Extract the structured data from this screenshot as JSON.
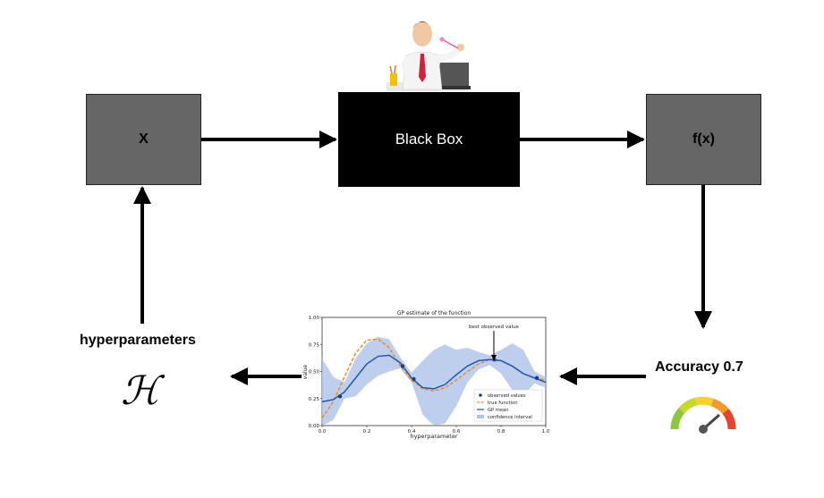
{
  "diagram": {
    "input_label": "X",
    "blackbox_label": "Black Box",
    "output_label": "f(x)",
    "accuracy_label": "Accuracy 0.7",
    "hyperparameters_label": "hyperparameters",
    "hyperparameter_symbol": "ℋ"
  },
  "icons": {
    "presenter": "magician-person-icon",
    "gauge": "speedometer-gauge-icon"
  },
  "colors": {
    "gray_box": "#666666",
    "black_box": "#000000",
    "gp_mean": "#1f57b5",
    "true_function": "#f08a24",
    "confidence": "#aec3e8"
  },
  "chart_data": {
    "type": "line",
    "title": "GP estimate of the function",
    "xlabel": "hyperparameter",
    "ylabel": "value",
    "xlim": [
      0.0,
      1.0
    ],
    "ylim": [
      0.0,
      1.0
    ],
    "xticks": [
      "0.0",
      "0.2",
      "0.4",
      "0.6",
      "0.8",
      "1.0"
    ],
    "yticks": [
      "0.00",
      "0.25",
      "0.50",
      "0.75",
      "1.00"
    ],
    "annotation": "best observed value",
    "legend_position": "lower-right",
    "legend": [
      "observed values",
      "true function",
      "GP mean",
      "confidence interval"
    ],
    "x": [
      0.0,
      0.05,
      0.1,
      0.15,
      0.2,
      0.25,
      0.3,
      0.35,
      0.4,
      0.45,
      0.5,
      0.55,
      0.6,
      0.65,
      0.7,
      0.75,
      0.8,
      0.85,
      0.9,
      0.95,
      1.0
    ],
    "true_function": [
      0.07,
      0.22,
      0.45,
      0.67,
      0.79,
      0.8,
      0.72,
      0.55,
      0.42,
      0.34,
      0.32,
      0.35,
      0.42,
      0.5,
      0.57,
      0.61,
      0.6,
      0.55,
      0.48,
      0.44,
      0.42
    ],
    "gp_mean": [
      0.22,
      0.24,
      0.31,
      0.44,
      0.57,
      0.64,
      0.65,
      0.58,
      0.44,
      0.35,
      0.34,
      0.38,
      0.47,
      0.55,
      0.6,
      0.61,
      0.6,
      0.55,
      0.48,
      0.44,
      0.4
    ],
    "ci_upper": [
      0.62,
      0.45,
      0.4,
      0.62,
      0.76,
      0.82,
      0.8,
      0.63,
      0.49,
      0.6,
      0.7,
      0.75,
      0.7,
      0.72,
      0.68,
      0.65,
      0.7,
      0.76,
      0.7,
      0.5,
      0.45
    ],
    "ci_lower": [
      -0.15,
      0.05,
      0.25,
      0.27,
      0.38,
      0.46,
      0.5,
      0.53,
      0.4,
      0.1,
      -0.05,
      0.02,
      0.18,
      0.4,
      0.52,
      0.56,
      0.48,
      0.33,
      0.28,
      0.39,
      0.35
    ],
    "observed": [
      {
        "x": 0.08,
        "y": 0.27
      },
      {
        "x": 0.36,
        "y": 0.55
      },
      {
        "x": 0.41,
        "y": 0.43
      },
      {
        "x": 0.77,
        "y": 0.61
      },
      {
        "x": 0.96,
        "y": 0.44
      }
    ]
  }
}
